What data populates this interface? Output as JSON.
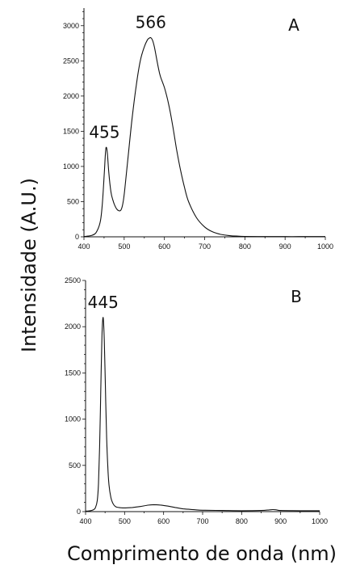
{
  "ylabel": "Intensidade (A.U.)",
  "xlabel": "Comprimento de onda (nm)",
  "chart_data": [
    {
      "type": "line",
      "panel_label": "A",
      "xlim": [
        400,
        1000
      ],
      "ylim": [
        0,
        3250
      ],
      "x_ticks": [
        400,
        500,
        600,
        700,
        800,
        900,
        1000
      ],
      "y_ticks": [
        0,
        500,
        1000,
        1500,
        2000,
        2500,
        3000
      ],
      "grid": false,
      "annotations": [
        {
          "text": "455",
          "x": 455,
          "y": 1270
        },
        {
          "text": "566",
          "x": 566,
          "y": 2830
        }
      ],
      "series": [
        {
          "x": [
            400,
            410,
            420,
            430,
            440,
            445,
            450,
            453,
            455,
            458,
            462,
            467,
            472,
            477,
            482,
            487,
            492,
            497,
            502,
            510,
            520,
            530,
            540,
            550,
            558,
            563,
            566,
            570,
            575,
            580,
            585,
            590,
            600,
            610,
            620,
            630,
            640,
            650,
            660,
            680,
            700,
            720,
            740,
            760,
            780,
            800,
            850,
            900,
            950,
            1000
          ],
          "y": [
            5,
            10,
            22,
            60,
            200,
            420,
            850,
            1150,
            1270,
            1200,
            900,
            640,
            520,
            440,
            390,
            370,
            380,
            480,
            700,
            1150,
            1700,
            2150,
            2500,
            2700,
            2800,
            2825,
            2830,
            2800,
            2700,
            2550,
            2400,
            2280,
            2120,
            1900,
            1600,
            1250,
            950,
            700,
            500,
            270,
            140,
            70,
            35,
            18,
            10,
            6,
            4,
            3,
            3,
            3
          ]
        }
      ]
    },
    {
      "type": "line",
      "panel_label": "B",
      "xlim": [
        400,
        1000
      ],
      "ylim": [
        0,
        2500
      ],
      "x_ticks": [
        400,
        500,
        600,
        700,
        800,
        900,
        1000
      ],
      "y_ticks": [
        0,
        500,
        1000,
        1500,
        2000,
        2500
      ],
      "grid": false,
      "annotations": [
        {
          "text": "445",
          "x": 445,
          "y": 2100
        }
      ],
      "series": [
        {
          "x": [
            400,
            410,
            420,
            425,
            430,
            433,
            436,
            439,
            442,
            445,
            448,
            451,
            454,
            457,
            460,
            465,
            470,
            475,
            480,
            490,
            500,
            520,
            540,
            560,
            575,
            590,
            610,
            630,
            650,
            680,
            700,
            750,
            800,
            850,
            870,
            880,
            890,
            900,
            950,
            1000
          ],
          "y": [
            5,
            8,
            20,
            40,
            120,
            300,
            700,
            1300,
            1900,
            2100,
            1850,
            1300,
            800,
            480,
            290,
            150,
            90,
            60,
            48,
            42,
            40,
            45,
            55,
            70,
            75,
            72,
            60,
            45,
            30,
            20,
            15,
            12,
            10,
            12,
            18,
            22,
            18,
            12,
            10,
            10
          ]
        }
      ]
    }
  ]
}
